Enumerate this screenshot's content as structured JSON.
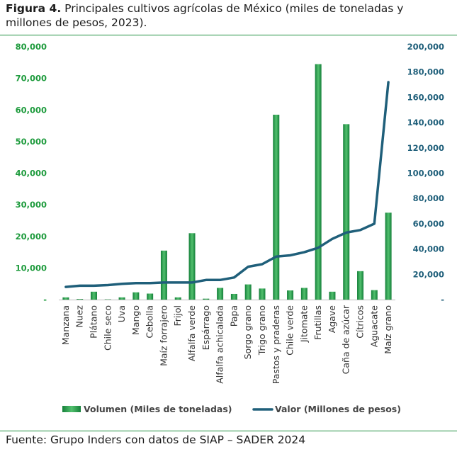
{
  "header": {
    "label": "Figura 4.",
    "text": "Principales cultivos agrícolas de México (miles de toneladas y millones de pesos, 2023)."
  },
  "footer": {
    "source": "Fuente: Grupo Inders con datos de SIAP – SADER 2024"
  },
  "chart_data": {
    "type": "bar",
    "categories": [
      "Manzana",
      "Nuez",
      "Plátano",
      "Chile seco",
      "Uva",
      "Mango",
      "Cebolla",
      "Maíz forrajero",
      "Frijol",
      "Alfalfa verde",
      "Espárrago",
      "Alfalfa achicalada",
      "Papa",
      "Sorgo grano",
      "Trigo grano",
      "Pastos y praderas",
      "Chile verde",
      "Jitomate",
      "Frutillas",
      "Agave",
      "Caña de azúcar",
      "Cítricos",
      "Aguacate",
      "Maíz grano"
    ],
    "series": [
      {
        "name": "Volumen (Miles de toneladas)",
        "type": "bar",
        "axis": "left",
        "color": "#1e9b3d",
        "values": [
          700,
          200,
          2500,
          100,
          700,
          2300,
          1900,
          15500,
          700,
          21000,
          300,
          3700,
          1800,
          4800,
          3500,
          58500,
          2900,
          3700,
          74500,
          2500,
          55500,
          9000,
          3000,
          27500
        ]
      },
      {
        "name": "Valor (Millones de pesos)",
        "type": "line",
        "axis": "right",
        "color": "#1f5f7a",
        "values": [
          10000,
          11000,
          11000,
          11500,
          12500,
          13000,
          13000,
          13500,
          13500,
          13500,
          15500,
          15500,
          17500,
          26000,
          28000,
          34000,
          35000,
          37500,
          41000,
          48000,
          53000,
          55000,
          60000,
          172000
        ]
      }
    ],
    "y_left": {
      "ticks": [
        0,
        10000,
        20000,
        30000,
        40000,
        50000,
        60000,
        70000,
        80000
      ],
      "tick_labels": [
        "-",
        "10,000",
        "20,000",
        "30,000",
        "40,000",
        "50,000",
        "60,000",
        "70,000",
        "80,000"
      ],
      "range": [
        0,
        80000
      ],
      "color": "#1e9b3d"
    },
    "y_right": {
      "ticks": [
        0,
        20000,
        40000,
        60000,
        80000,
        100000,
        120000,
        140000,
        160000,
        180000,
        200000
      ],
      "tick_labels": [
        "-",
        "20,000",
        "40,000",
        "60,000",
        "80,000",
        "100,000",
        "120,000",
        "140,000",
        "160,000",
        "180,000",
        "200,000"
      ],
      "range": [
        0,
        200000
      ],
      "color": "#1f5f7a"
    },
    "grid": false,
    "legend": "bottom"
  }
}
